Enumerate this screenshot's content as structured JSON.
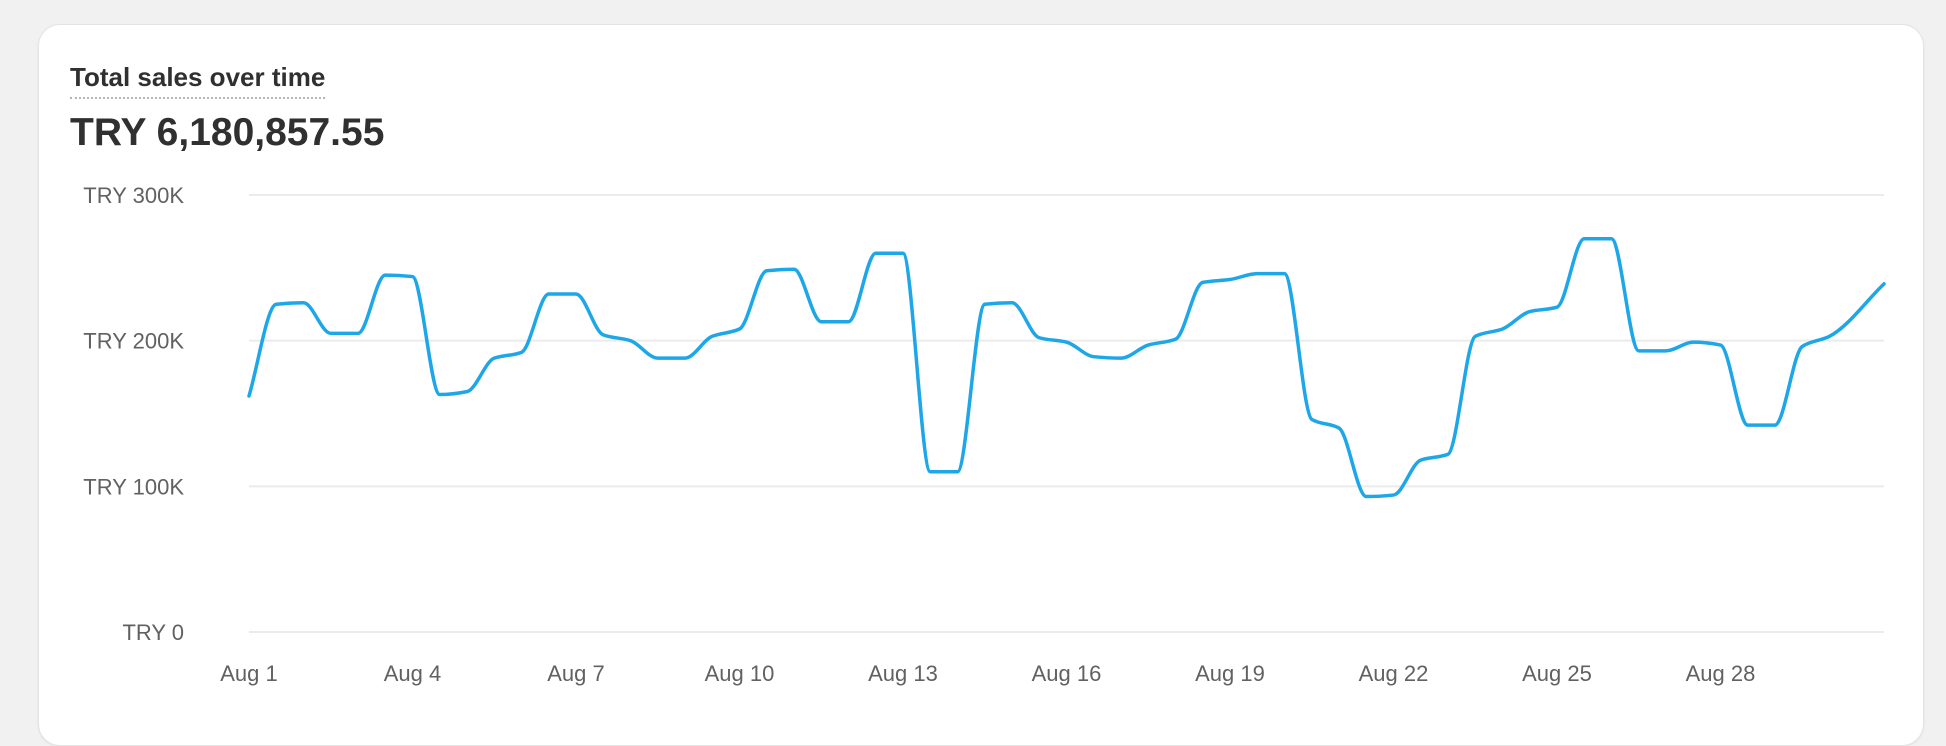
{
  "card": {
    "title": "Total sales over time",
    "total": "TRY 6,180,857.55"
  },
  "colors": {
    "line": "#1ea7e8",
    "grid": "#ebebeb",
    "axis_text": "#616161",
    "background": "#ffffff"
  },
  "chart_data": {
    "type": "line",
    "title": "Total sales over time",
    "xlabel": "",
    "ylabel": "",
    "ylim": [
      0,
      300000
    ],
    "yticks": [
      0,
      100000,
      200000,
      300000
    ],
    "ytick_labels": [
      "TRY 0",
      "TRY 100K",
      "TRY 200K",
      "TRY 300K"
    ],
    "xtick_labels": [
      "Aug 1",
      "Aug 4",
      "Aug 7",
      "Aug 10",
      "Aug 13",
      "Aug 16",
      "Aug 19",
      "Aug 22",
      "Aug 25",
      "Aug 28"
    ],
    "xtick_days": [
      1,
      4,
      7,
      10,
      13,
      16,
      19,
      22,
      25,
      28
    ],
    "x": [
      1,
      1.5,
      2,
      2.5,
      3,
      3.5,
      4,
      4.5,
      5,
      5.5,
      6,
      6.5,
      7,
      7.5,
      8,
      8.5,
      9,
      9.5,
      10,
      10.5,
      11,
      11.5,
      12,
      12.5,
      13,
      13.5,
      14,
      14.5,
      15,
      15.5,
      16,
      16.5,
      17,
      17.5,
      18,
      18.5,
      19,
      19.5,
      20,
      20.5,
      21,
      21.5,
      22,
      22.5,
      23,
      23.5,
      24,
      24.5,
      25,
      25.5,
      26,
      26.5,
      27,
      27.5,
      28,
      28.5,
      29,
      29.5,
      30,
      31
    ],
    "grid": true,
    "legend": "none",
    "series": [
      {
        "name": "",
        "values": [
          162000,
          225000,
          226000,
          205000,
          205000,
          245000,
          244000,
          163000,
          165000,
          188000,
          192000,
          232000,
          232000,
          204000,
          200000,
          188000,
          188000,
          203000,
          208000,
          248000,
          249000,
          213000,
          213000,
          260000,
          260000,
          110000,
          110000,
          225000,
          226000,
          202000,
          199000,
          189000,
          188000,
          197000,
          201000,
          240000,
          242000,
          246000,
          246000,
          146000,
          140000,
          93000,
          94000,
          118000,
          122000,
          203000,
          208000,
          220000,
          223000,
          270000,
          270000,
          193000,
          193000,
          199000,
          197000,
          142000,
          142000,
          196000,
          203000,
          239000
        ]
      }
    ]
  }
}
